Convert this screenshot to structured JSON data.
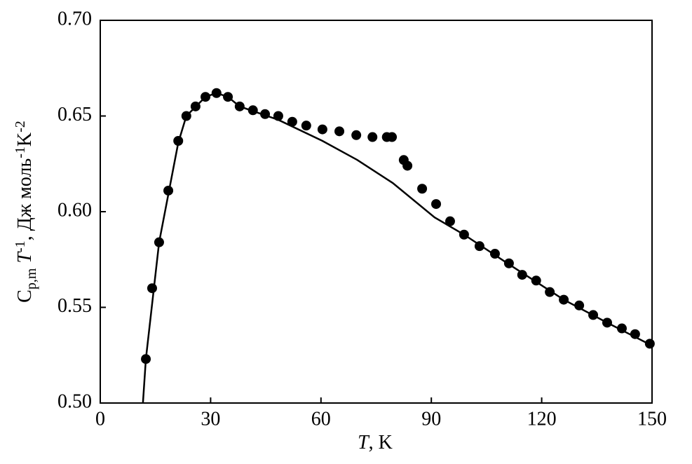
{
  "chart_data": {
    "type": "scatter",
    "color": "#000000",
    "x_label": [
      "T",
      ", K"
    ],
    "y_label": [
      "C",
      "p,m",
      " T",
      "-1",
      ", Дж моль",
      "-1",
      "K",
      "-2"
    ],
    "xlim": [
      0,
      150
    ],
    "xticks": [
      0,
      30,
      60,
      90,
      120,
      150
    ],
    "ylim": [
      0.5,
      0.7
    ],
    "yticks": [
      {
        "value": 0.5,
        "label": "0.50"
      },
      {
        "value": 0.55,
        "label": "0.55"
      },
      {
        "value": 0.6,
        "label": "0.60"
      },
      {
        "value": 0.65,
        "label": "0.65"
      },
      {
        "value": 0.7,
        "label": "0.70"
      }
    ],
    "points": {
      "x": [
        12.4,
        14.1,
        16.0,
        18.5,
        21.2,
        23.4,
        25.9,
        28.6,
        31.6,
        34.7,
        37.9,
        41.5,
        44.8,
        48.4,
        52.2,
        56.0,
        60.4,
        65.0,
        69.6,
        74.0,
        77.9,
        79.3,
        82.5,
        83.5,
        87.5,
        91.3,
        95.1,
        98.9,
        103.1,
        107.3,
        111.1,
        114.7,
        118.5,
        122.2,
        126.0,
        130.2,
        134.0,
        137.8,
        141.8,
        145.4,
        149.4
      ],
      "y": [
        0.523,
        0.56,
        0.584,
        0.611,
        0.637,
        0.65,
        0.655,
        0.66,
        0.662,
        0.66,
        0.655,
        0.653,
        0.651,
        0.65,
        0.647,
        0.645,
        0.643,
        0.642,
        0.64,
        0.639,
        0.639,
        0.639,
        0.627,
        0.624,
        0.612,
        0.604,
        0.595,
        0.588,
        0.582,
        0.578,
        0.573,
        0.567,
        0.564,
        0.558,
        0.554,
        0.551,
        0.546,
        0.542,
        0.539,
        0.536,
        0.531
      ]
    },
    "curve": {
      "x": [
        11.6,
        12.4,
        16.0,
        21.2,
        23.4,
        28.6,
        31.6,
        34.7,
        37.9,
        48.4,
        60.4,
        69.9,
        79.5,
        90.9,
        98.9,
        111.1,
        126.0,
        137.8,
        150
      ],
      "y": [
        0.5,
        0.523,
        0.584,
        0.636,
        0.65,
        0.66,
        0.662,
        0.66,
        0.655,
        0.648,
        0.637,
        0.627,
        0.615,
        0.597,
        0.588,
        0.5725,
        0.554,
        0.542,
        0.53
      ]
    }
  }
}
